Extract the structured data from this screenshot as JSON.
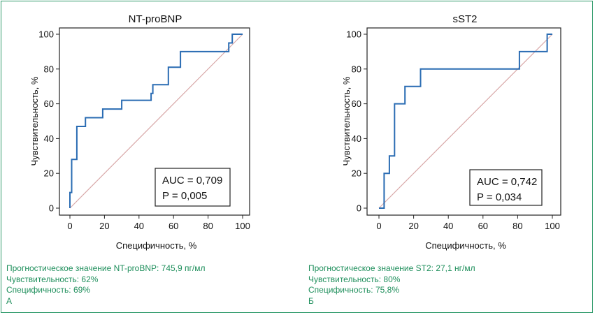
{
  "chart_data": [
    {
      "type": "line",
      "title": "NT-proBNP",
      "xlabel": "Специфичность, %",
      "ylabel": "Чувствительность, %",
      "xlim": [
        0,
        100
      ],
      "ylim": [
        0,
        100
      ],
      "xticks": [
        "0",
        "20",
        "40",
        "60",
        "80",
        "100"
      ],
      "yticks": [
        "0",
        "20",
        "40",
        "60",
        "80",
        "100"
      ],
      "grid": false,
      "roc_curve": {
        "x": [
          0,
          0,
          1,
          1,
          4,
          4,
          4,
          9,
          9,
          19,
          19,
          30,
          30,
          47,
          47,
          48,
          48,
          57,
          57,
          64,
          64,
          92,
          92,
          94,
          94,
          100
        ],
        "y": [
          0,
          9,
          9,
          28,
          28,
          47,
          47,
          47,
          52,
          52,
          57,
          57,
          62,
          62,
          66,
          66,
          71,
          71,
          81,
          81,
          90,
          90,
          95,
          95,
          100,
          100
        ]
      },
      "reference_line": {
        "x": [
          0,
          100
        ],
        "y": [
          0,
          100
        ]
      },
      "annotations": [
        "AUC = 0,709",
        "P = 0,005"
      ],
      "colors": {
        "curve": "#2a6cb3",
        "reference": "#d8a8a8"
      }
    },
    {
      "type": "line",
      "title": "sST2",
      "xlabel": "Специфичность, %",
      "ylabel": "Чувствительность, %",
      "xlim": [
        0,
        100
      ],
      "ylim": [
        0,
        100
      ],
      "xticks": [
        "0",
        "20",
        "40",
        "60",
        "80",
        "100"
      ],
      "yticks": [
        "0",
        "20",
        "40",
        "60",
        "80",
        "100"
      ],
      "grid": false,
      "roc_curve": {
        "x": [
          0,
          3,
          3,
          6,
          6,
          9,
          9,
          15,
          15,
          24,
          24,
          81,
          81,
          97,
          97,
          100
        ],
        "y": [
          0,
          0,
          20,
          20,
          30,
          30,
          60,
          60,
          70,
          70,
          80,
          80,
          90,
          90,
          100,
          100
        ]
      },
      "reference_line": {
        "x": [
          0,
          100
        ],
        "y": [
          0,
          100
        ]
      },
      "annotations": [
        "AUC = 0,742",
        "P = 0,034"
      ],
      "colors": {
        "curve": "#2a6cb3",
        "reference": "#d8a8a8"
      }
    }
  ],
  "captions": [
    {
      "lines": [
        "Прогностическое значение NT-proBNP: 745,9 пг/мл",
        "Чувствительность: 62%",
        "Специфичность: 69%",
        "А"
      ],
      "color": "#1f8f5c"
    },
    {
      "lines": [
        "Прогностическое значение ST2: 27,1 нг/мл",
        "Чувствительность: 80%",
        "Специфичность: 75,8%",
        "Б"
      ],
      "color": "#1f8f5c"
    }
  ]
}
